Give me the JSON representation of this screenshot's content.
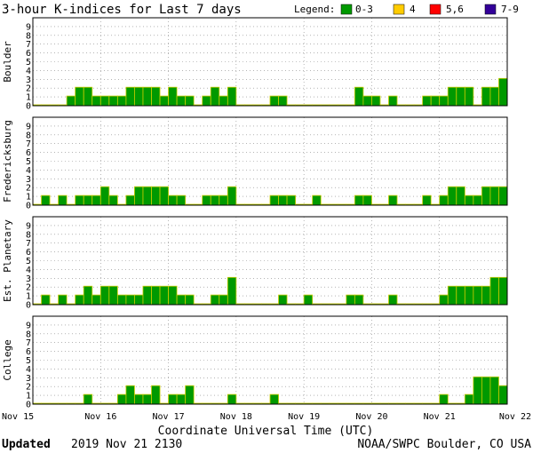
{
  "title": "3-hour K-indices for Last 7 days",
  "legend": {
    "label": "Legend:",
    "items": [
      {
        "label": "0-3",
        "color": "#009900"
      },
      {
        "label": "4",
        "color": "#ffcc00"
      },
      {
        "label": "5,6",
        "color": "#ff0000"
      },
      {
        "label": "7-9",
        "color": "#330099"
      }
    ]
  },
  "bar_outline_color": "#cccc00",
  "xlabel": "Coordinate Universal Time (UTC)",
  "footer": {
    "updated_label": "Updated",
    "updated_value": "2019 Nov 21 2130",
    "credit": "NOAA/SWPC Boulder, CO USA"
  },
  "chart_data": [
    {
      "type": "bar",
      "title": "Boulder",
      "ylabel": "Boulder",
      "ylim": [
        0,
        9
      ],
      "yticks": [
        0,
        1,
        2,
        3,
        4,
        5,
        6,
        7,
        8,
        9
      ],
      "grid": true,
      "x_ticks": [
        "Nov 15",
        "Nov 16",
        "Nov 17",
        "Nov 18",
        "Nov 19",
        "Nov 20",
        "Nov 21",
        "Nov 22"
      ],
      "interval_hours": 3,
      "values": [
        0,
        0,
        0,
        0,
        1,
        2,
        2,
        1,
        1,
        1,
        1,
        2,
        2,
        2,
        2,
        1,
        2,
        1,
        1,
        0,
        1,
        2,
        1,
        2,
        0,
        0,
        0,
        0,
        1,
        1,
        0,
        0,
        0,
        0,
        0,
        0,
        0,
        0,
        2,
        1,
        1,
        0,
        1,
        0,
        0,
        0,
        1,
        1,
        1,
        2,
        2,
        2,
        0,
        2,
        2,
        3
      ]
    },
    {
      "type": "bar",
      "title": "Fredericksburg",
      "ylabel": "Fredericksburg",
      "ylim": [
        0,
        9
      ],
      "yticks": [
        0,
        1,
        2,
        3,
        4,
        5,
        6,
        7,
        8,
        9
      ],
      "grid": true,
      "x_ticks": [
        "Nov 15",
        "Nov 16",
        "Nov 17",
        "Nov 18",
        "Nov 19",
        "Nov 20",
        "Nov 21",
        "Nov 22"
      ],
      "interval_hours": 3,
      "values": [
        0,
        1,
        0,
        1,
        0,
        1,
        1,
        1,
        2,
        1,
        0,
        1,
        2,
        2,
        2,
        2,
        1,
        1,
        0,
        0,
        1,
        1,
        1,
        2,
        0,
        0,
        0,
        0,
        1,
        1,
        1,
        0,
        0,
        1,
        0,
        0,
        0,
        0,
        1,
        1,
        0,
        0,
        1,
        0,
        0,
        0,
        1,
        0,
        1,
        2,
        2,
        1,
        1,
        2,
        2,
        2
      ]
    },
    {
      "type": "bar",
      "title": "Est. Planetary",
      "ylabel": "Est. Planetary",
      "ylim": [
        0,
        9
      ],
      "yticks": [
        0,
        1,
        2,
        3,
        4,
        5,
        6,
        7,
        8,
        9
      ],
      "grid": true,
      "x_ticks": [
        "Nov 15",
        "Nov 16",
        "Nov 17",
        "Nov 18",
        "Nov 19",
        "Nov 20",
        "Nov 21",
        "Nov 22"
      ],
      "interval_hours": 3,
      "values": [
        0,
        1,
        0,
        1,
        0,
        1,
        2,
        1,
        2,
        2,
        1,
        1,
        1,
        2,
        2,
        2,
        2,
        1,
        1,
        0,
        0,
        1,
        1,
        3,
        0,
        0,
        0,
        0,
        0,
        1,
        0,
        0,
        1,
        0,
        0,
        0,
        0,
        1,
        1,
        0,
        0,
        0,
        1,
        0,
        0,
        0,
        0,
        0,
        1,
        2,
        2,
        2,
        2,
        2,
        3,
        3
      ]
    },
    {
      "type": "bar",
      "title": "College",
      "ylabel": "College",
      "ylim": [
        0,
        9
      ],
      "yticks": [
        0,
        1,
        2,
        3,
        4,
        5,
        6,
        7,
        8,
        9
      ],
      "grid": true,
      "x_ticks": [
        "Nov 15",
        "Nov 16",
        "Nov 17",
        "Nov 18",
        "Nov 19",
        "Nov 20",
        "Nov 21",
        "Nov 22"
      ],
      "interval_hours": 3,
      "values": [
        0,
        0,
        0,
        0,
        0,
        0,
        1,
        0,
        0,
        0,
        1,
        2,
        1,
        1,
        2,
        0,
        1,
        1,
        2,
        0,
        0,
        0,
        0,
        1,
        0,
        0,
        0,
        0,
        1,
        0,
        0,
        0,
        0,
        0,
        0,
        0,
        0,
        0,
        0,
        0,
        0,
        0,
        0,
        0,
        0,
        0,
        0,
        0,
        1,
        0,
        0,
        1,
        3,
        3,
        3,
        2
      ]
    }
  ]
}
